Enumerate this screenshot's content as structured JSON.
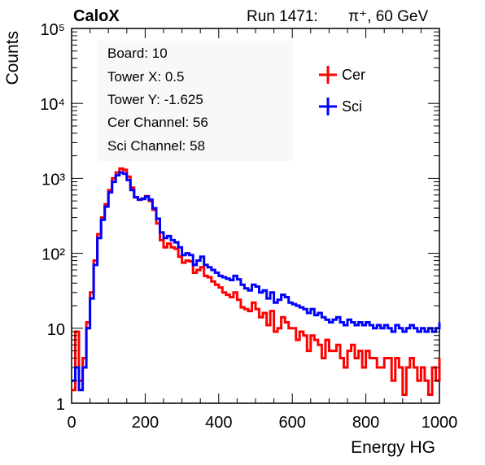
{
  "header": {
    "experiment": "CaloX",
    "run": "Run 1471:",
    "particle": "π⁺, 60 GeV"
  },
  "info_box": [
    "Board: 10",
    "Tower X: 0.5",
    "Tower Y: -1.625",
    "Cer Channel: 56",
    "Sci Channel: 58"
  ],
  "chart_data": {
    "type": "line",
    "title": "",
    "xlabel": "Energy HG",
    "ylabel": "Counts",
    "xlim": [
      0,
      1000
    ],
    "ylim": [
      1,
      100000
    ],
    "yscale": "log",
    "xticks": [
      "0",
      "200",
      "400",
      "600",
      "800",
      "1000"
    ],
    "yticks": [
      "1",
      "10",
      "10²",
      "10³",
      "10⁴",
      "10⁵"
    ],
    "legend_position": "top-right",
    "series": [
      {
        "name": "Cer",
        "color": "#ff0000",
        "x": [
          0,
          10,
          20,
          30,
          40,
          50,
          60,
          70,
          80,
          90,
          100,
          110,
          120,
          130,
          140,
          150,
          160,
          170,
          180,
          190,
          200,
          210,
          220,
          230,
          240,
          250,
          260,
          270,
          280,
          290,
          300,
          310,
          320,
          330,
          340,
          350,
          360,
          370,
          380,
          390,
          400,
          410,
          420,
          430,
          440,
          450,
          460,
          470,
          480,
          490,
          500,
          510,
          520,
          530,
          540,
          550,
          560,
          570,
          580,
          590,
          600,
          610,
          620,
          630,
          640,
          650,
          660,
          670,
          680,
          690,
          700,
          710,
          720,
          730,
          740,
          750,
          760,
          770,
          780,
          790,
          800,
          810,
          820,
          830,
          840,
          850,
          860,
          870,
          880,
          890,
          900,
          910,
          920,
          930,
          940,
          950,
          960,
          970,
          980,
          990,
          1000
        ],
        "values": [
          1.5,
          9,
          2,
          4,
          12,
          30,
          80,
          180,
          300,
          450,
          700,
          1000,
          1200,
          1350,
          1300,
          1050,
          750,
          560,
          520,
          540,
          580,
          500,
          380,
          250,
          150,
          120,
          135,
          120,
          115,
          90,
          75,
          80,
          78,
          55,
          60,
          65,
          50,
          48,
          42,
          38,
          35,
          30,
          28,
          26,
          30,
          24,
          19,
          18,
          17,
          22,
          18,
          14,
          16,
          11,
          17,
          9,
          10,
          14,
          12,
          10,
          10,
          7,
          9,
          8,
          5,
          8,
          7,
          6,
          4,
          7,
          5,
          5,
          6,
          4,
          3,
          5,
          6,
          4,
          5,
          3,
          5,
          4,
          4,
          3,
          3,
          4,
          4,
          2,
          4,
          3,
          1.3,
          3,
          4,
          3,
          2,
          3,
          2,
          1.3,
          3,
          2,
          4
        ]
      },
      {
        "name": "Sci",
        "color": "#0000ff",
        "x": [
          0,
          10,
          20,
          30,
          40,
          50,
          60,
          70,
          80,
          90,
          100,
          110,
          120,
          130,
          140,
          150,
          160,
          170,
          180,
          190,
          200,
          210,
          220,
          230,
          240,
          250,
          260,
          270,
          280,
          290,
          300,
          310,
          320,
          330,
          340,
          350,
          360,
          370,
          380,
          390,
          400,
          410,
          420,
          430,
          440,
          450,
          460,
          470,
          480,
          490,
          500,
          510,
          520,
          530,
          540,
          550,
          560,
          570,
          580,
          590,
          600,
          610,
          620,
          630,
          640,
          650,
          660,
          670,
          680,
          690,
          700,
          710,
          720,
          730,
          740,
          750,
          760,
          770,
          780,
          790,
          800,
          810,
          820,
          830,
          840,
          850,
          860,
          870,
          880,
          890,
          900,
          910,
          920,
          930,
          940,
          950,
          960,
          970,
          980,
          990,
          1000
        ],
        "values": [
          2,
          3,
          1.5,
          3,
          10,
          25,
          70,
          160,
          280,
          420,
          650,
          900,
          1100,
          1200,
          1150,
          950,
          700,
          560,
          520,
          530,
          570,
          520,
          400,
          290,
          190,
          160,
          170,
          150,
          140,
          120,
          95,
          100,
          95,
          70,
          80,
          90,
          70,
          65,
          60,
          55,
          50,
          48,
          46,
          44,
          50,
          45,
          38,
          34,
          32,
          38,
          36,
          30,
          32,
          25,
          30,
          22,
          24,
          28,
          26,
          22,
          21,
          20,
          19,
          18,
          16,
          18,
          15,
          16,
          14,
          13,
          12,
          13,
          14,
          12,
          11,
          13,
          12,
          11,
          12,
          11,
          12,
          11,
          10,
          11,
          10,
          11,
          10,
          9,
          11,
          10,
          9,
          10,
          11,
          10,
          9,
          10,
          9,
          10,
          9,
          10,
          12
        ]
      }
    ]
  }
}
